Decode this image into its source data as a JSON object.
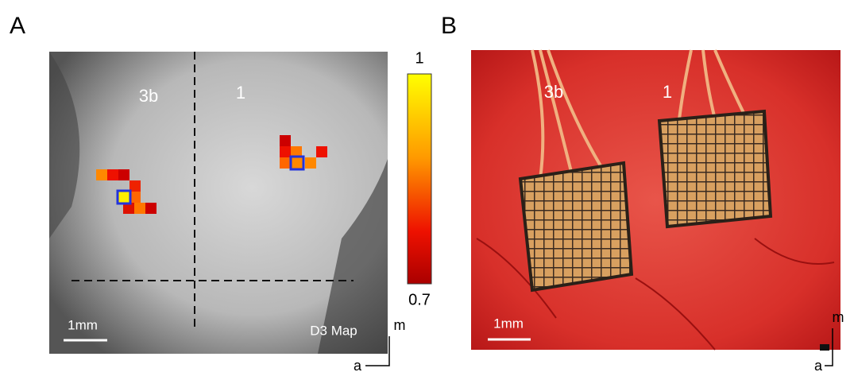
{
  "panel_a": {
    "label": "A",
    "region_left": "3b",
    "region_right": "1",
    "scale_bar": "1mm",
    "map_label": "D3 Map",
    "colorbar": {
      "max": "1",
      "min": "0.7"
    },
    "orientation": {
      "medial": "m",
      "anterior": "a"
    }
  },
  "panel_b": {
    "label": "B",
    "region_left": "3b",
    "region_right": "1",
    "scale_bar": "1mm",
    "orientation": {
      "medial": "m",
      "anterior": "a"
    }
  }
}
